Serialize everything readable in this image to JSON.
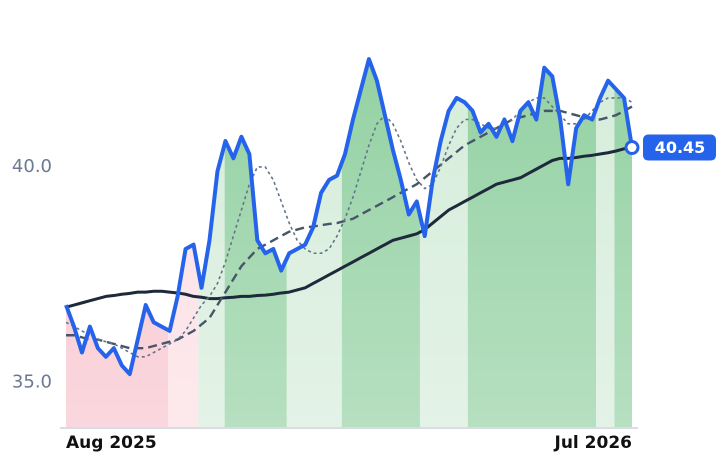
{
  "chart_data": {
    "type": "line",
    "categories": [
      "Aug 2025",
      null,
      null,
      null,
      null,
      null,
      null,
      null,
      null,
      null,
      null,
      null,
      null,
      null,
      null,
      null,
      null,
      null,
      null,
      null,
      null,
      null,
      null,
      null,
      null,
      null,
      null,
      null,
      null,
      null,
      null,
      null,
      null,
      null,
      null,
      null,
      null,
      null,
      null,
      null,
      null,
      null,
      null,
      null,
      null,
      null,
      null,
      null,
      null,
      null,
      null,
      null,
      null,
      null,
      null,
      null,
      null,
      null,
      null,
      null,
      null,
      null,
      null,
      null,
      null,
      null,
      null,
      null,
      null,
      null,
      null,
      "Jul 2026"
    ],
    "series": [
      {
        "color": "#2563eb",
        "style": "solid",
        "values": [
          36.8,
          36.3,
          35.7,
          36.3,
          35.8,
          35.6,
          35.8,
          35.4,
          35.2,
          36.0,
          36.8,
          36.4,
          36.3,
          36.2,
          37.0,
          38.1,
          38.2,
          37.2,
          38.3,
          39.9,
          40.6,
          40.2,
          40.7,
          40.3,
          38.3,
          38.0,
          38.1,
          37.6,
          38.0,
          38.1,
          38.2,
          38.6,
          39.4,
          39.7,
          39.8,
          40.3,
          41.1,
          41.8,
          42.5,
          42.0,
          41.2,
          40.4,
          39.7,
          38.9,
          39.2,
          38.4,
          39.7,
          40.6,
          41.3,
          41.6,
          41.5,
          41.3,
          40.8,
          41.0,
          40.7,
          41.1,
          40.6,
          41.3,
          41.5,
          41.1,
          42.3,
          42.1,
          41.1,
          39.6,
          40.9,
          41.2,
          41.1,
          41.6,
          42.0,
          41.8,
          41.6,
          40.45
        ]
      },
      {
        "color": "#64748b",
        "style": "dotted",
        "values": [
          36.4,
          36.3,
          36.2,
          36.1,
          36.0,
          35.95,
          35.9,
          35.8,
          35.7,
          35.6,
          35.6,
          35.7,
          35.8,
          35.9,
          36.0,
          36.2,
          36.5,
          36.8,
          37.0,
          37.3,
          37.8,
          38.4,
          39.0,
          39.6,
          40.0,
          40.0,
          39.7,
          39.2,
          38.7,
          38.3,
          38.1,
          38.0,
          38.0,
          38.1,
          38.4,
          38.8,
          39.3,
          39.9,
          40.5,
          41.0,
          41.2,
          41.0,
          40.6,
          40.1,
          39.7,
          39.5,
          39.6,
          40.0,
          40.5,
          40.9,
          41.1,
          41.1,
          41.0,
          40.9,
          40.9,
          41.0,
          41.1,
          41.3,
          41.5,
          41.6,
          41.6,
          41.4,
          41.2,
          41.0,
          41.0,
          41.1,
          41.3,
          41.5,
          41.6,
          41.6,
          41.6,
          41.5
        ]
      },
      {
        "color": "#475569",
        "style": "dashed",
        "values": [
          36.1,
          36.1,
          36.05,
          36.0,
          36.0,
          35.95,
          35.9,
          35.85,
          35.8,
          35.8,
          35.8,
          35.85,
          35.9,
          35.95,
          36.0,
          36.1,
          36.2,
          36.35,
          36.5,
          36.8,
          37.1,
          37.4,
          37.7,
          37.9,
          38.1,
          38.2,
          38.3,
          38.4,
          38.5,
          38.55,
          38.6,
          38.62,
          38.65,
          38.68,
          38.7,
          38.75,
          38.8,
          38.9,
          39.0,
          39.1,
          39.2,
          39.3,
          39.4,
          39.5,
          39.6,
          39.75,
          39.9,
          40.05,
          40.2,
          40.35,
          40.5,
          40.6,
          40.7,
          40.8,
          40.9,
          41.0,
          41.1,
          41.15,
          41.2,
          41.25,
          41.3,
          41.3,
          41.3,
          41.25,
          41.2,
          41.15,
          41.1,
          41.1,
          41.15,
          41.2,
          41.3,
          41.4
        ]
      },
      {
        "color": "#1e293b",
        "style": "solid",
        "values": [
          36.75,
          36.8,
          36.85,
          36.9,
          36.95,
          37.0,
          37.02,
          37.05,
          37.07,
          37.1,
          37.1,
          37.12,
          37.12,
          37.1,
          37.08,
          37.05,
          37.0,
          36.98,
          36.95,
          36.95,
          36.97,
          36.98,
          37.0,
          37.0,
          37.02,
          37.03,
          37.05,
          37.08,
          37.1,
          37.15,
          37.2,
          37.3,
          37.4,
          37.5,
          37.6,
          37.7,
          37.8,
          37.9,
          38.0,
          38.1,
          38.2,
          38.3,
          38.35,
          38.4,
          38.45,
          38.55,
          38.7,
          38.85,
          39.0,
          39.1,
          39.2,
          39.3,
          39.4,
          39.5,
          39.6,
          39.65,
          39.7,
          39.75,
          39.85,
          39.95,
          40.05,
          40.15,
          40.2,
          40.2,
          40.22,
          40.25,
          40.27,
          40.3,
          40.33,
          40.37,
          40.42,
          40.45
        ]
      }
    ],
    "ylim": [
      33.95,
      43.87
    ],
    "yticks": [
      {
        "value": 35,
        "label": "35.0"
      },
      {
        "value": 40,
        "label": "40.0"
      }
    ],
    "grid": false
  }
}
